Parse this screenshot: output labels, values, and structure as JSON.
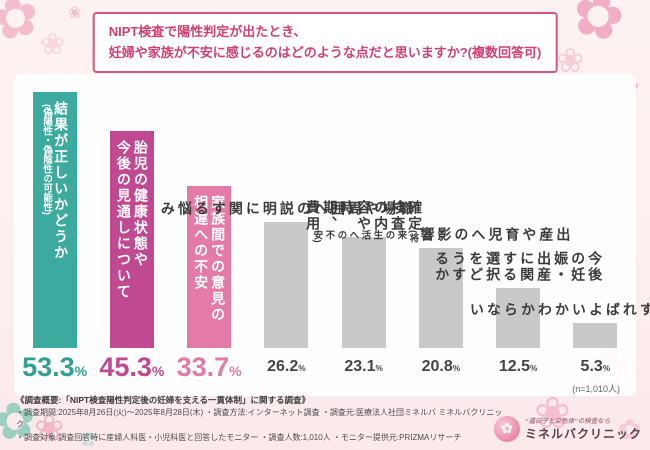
{
  "title": {
    "lines": [
      "NIPT検査で陽性判定が出たとき、",
      "妊婦や家族が不安に感じるのはどのような点だと思いますか?(複数回答可)"
    ]
  },
  "chart_data": {
    "type": "bar",
    "title": "NIPT検査で陽性判定が出たとき、妊婦や家族が不安に感じるのはどのような点だと思いますか?(複数回答可)",
    "unit": "%",
    "ylim": [
      0,
      60
    ],
    "n_label": "(n=1,010人)",
    "categories": [
      "結果が正しいかどうか(偽陽性・偽陰性の可能性)",
      "胎児の健康状態や今後の見通しについて",
      "家族間での意見の相違への不安",
      "職場や周囲への説明に関する悩み",
      "確定検査の内容や時期、費用",
      "出産や育児への影響(将来の生活への不安)",
      "今後の妊娠・出産に関する選択をどうするか",
      "誰に相談すればよいかわからない"
    ],
    "values": [
      53.3,
      45.3,
      33.7,
      26.2,
      23.1,
      20.8,
      12.5,
      5.3
    ],
    "bars": [
      {
        "value": 53.3,
        "value_label": "53.3",
        "emphasis": true,
        "label_inside": true,
        "color": "#3caa9e",
        "pct_color": "#2fa193",
        "label_color": "#ffffff",
        "lines": [
          {
            "text": "結果が正しいかどうか",
            "small": false
          },
          {
            "text": "(偽陽性・偽陰性の可能性)",
            "small": true
          }
        ]
      },
      {
        "value": 45.3,
        "value_label": "45.3",
        "emphasis": true,
        "label_inside": true,
        "color": "#c04a92",
        "pct_color": "#c04a92",
        "label_color": "#ffffff",
        "lines": [
          {
            "text": "胎児の健康状態や",
            "small": false
          },
          {
            "text": "今後の見通しについて",
            "small": false
          }
        ]
      },
      {
        "value": 33.7,
        "value_label": "33.7",
        "emphasis": true,
        "label_inside": true,
        "color": "#e37ba6",
        "pct_color": "#e37ba6",
        "label_color": "#ffffff",
        "lines": [
          {
            "text": "家族間での意見の",
            "small": false
          },
          {
            "text": "相違への不安",
            "small": false
          }
        ]
      },
      {
        "value": 26.2,
        "value_label": "26.2",
        "emphasis": false,
        "label_inside": false,
        "color": "#c9c9c9",
        "pct_color": "#454545",
        "label_color": "#3c3c3c",
        "lines": [
          {
            "text": "職場や周囲への",
            "small": false
          },
          {
            "text": "説明に関する悩み",
            "small": false
          }
        ]
      },
      {
        "value": 23.1,
        "value_label": "23.1",
        "emphasis": false,
        "label_inside": false,
        "color": "#c9c9c9",
        "pct_color": "#454545",
        "label_color": "#3c3c3c",
        "lines": [
          {
            "text": "確定検査の内容や",
            "small": false
          },
          {
            "text": "時期、費用",
            "small": false
          }
        ]
      },
      {
        "value": 20.8,
        "value_label": "20.8",
        "emphasis": false,
        "label_inside": false,
        "color": "#c9c9c9",
        "pct_color": "#454545",
        "label_color": "#3c3c3c",
        "lines": [
          {
            "text": "出産や育児への影響",
            "small": false
          },
          {
            "text": "(将来の生活への不安)",
            "small": true
          }
        ]
      },
      {
        "value": 12.5,
        "value_label": "12.5",
        "emphasis": false,
        "label_inside": false,
        "color": "#c9c9c9",
        "pct_color": "#454545",
        "label_color": "#3c3c3c",
        "lines": [
          {
            "text": "今後の妊娠・出産に関する",
            "small": false
          },
          {
            "text": "選択をどうするか",
            "small": false
          }
        ]
      },
      {
        "value": 5.3,
        "value_label": "5.3",
        "emphasis": false,
        "label_inside": false,
        "color": "#c9c9c9",
        "pct_color": "#454545",
        "label_color": "#3c3c3c",
        "lines": [
          {
            "text": "誰に相談すれば",
            "small": false
          },
          {
            "text": "よいかわからない",
            "small": false
          }
        ]
      }
    ]
  },
  "footer": {
    "lines": [
      "《調査概要:「NIPT検査陽性判定後の妊婦を支える一貫体制」に関する調査》",
      "・調査期間:2025年8月26日(火)〜2025年8月28日(木) ・調査方法:インターネット調査 ・調査元:医療法人社団ミネルバ ミネルバクリニック",
      "・調査対象:調査回答時に産婦人科医・小児科医と回答したモニター ・調査人数:1,010人 ・モニター提供元:PRIZMAリサーチ"
    ]
  },
  "logo": {
    "tagline": "“遺伝子と染色体”の検査なら",
    "name": "ミネルバクリニック"
  },
  "decor": {
    "flower_glyph": "✿",
    "blossom_glyph": "❀"
  }
}
